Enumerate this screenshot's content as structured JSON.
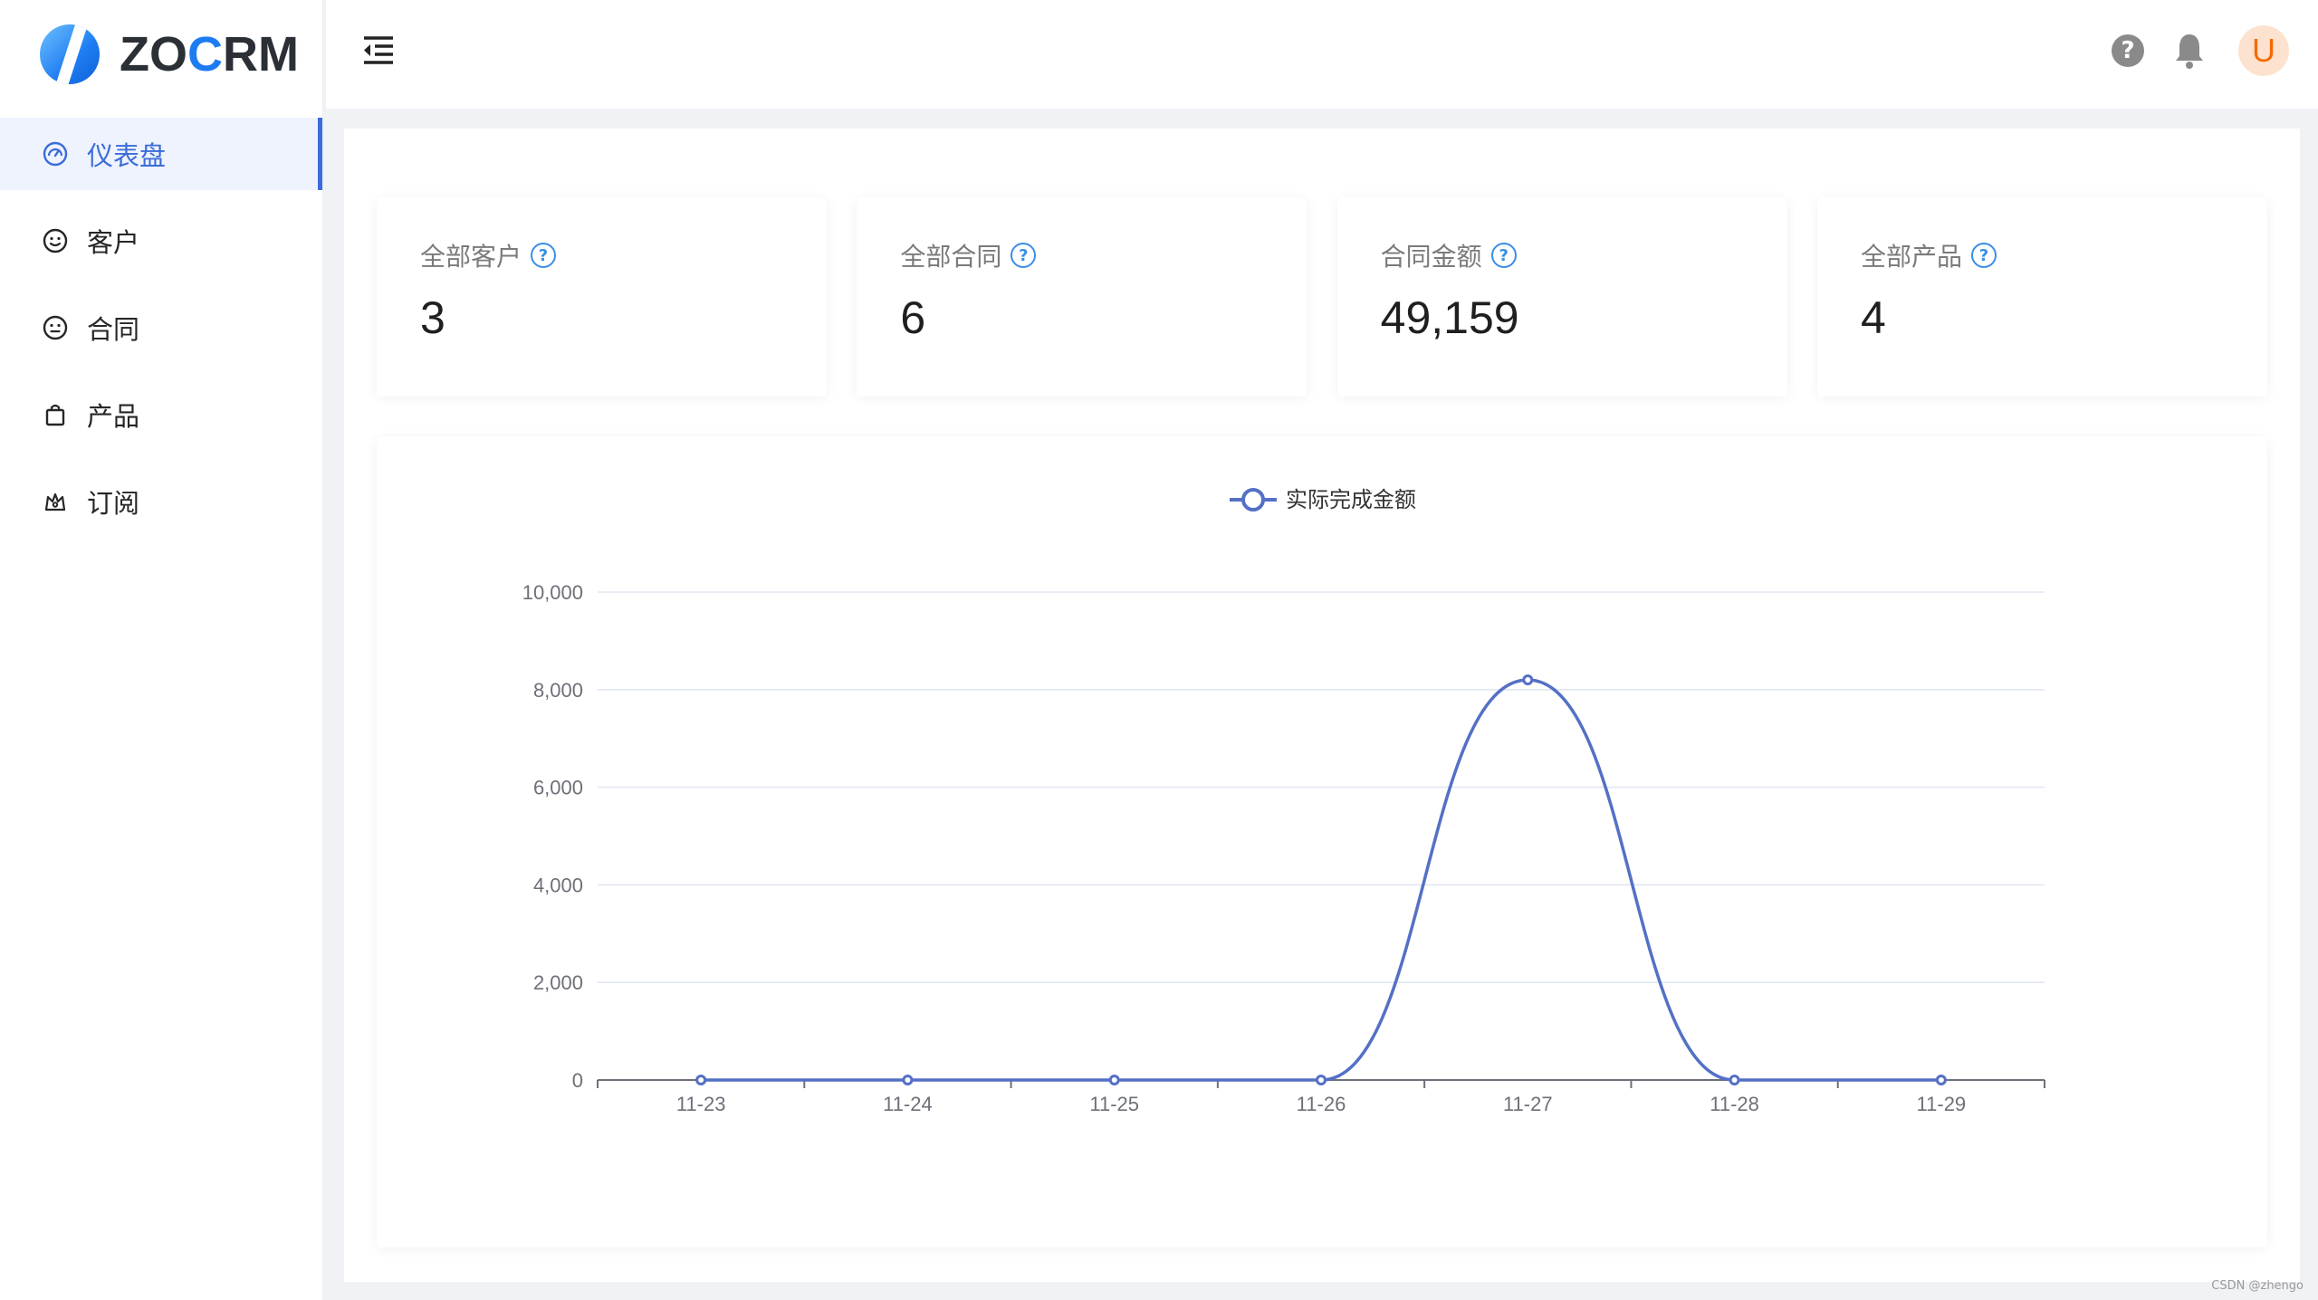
{
  "app": {
    "logo_prefix": "ZO",
    "logo_accent": "C",
    "logo_suffix": "RM"
  },
  "sidebar": {
    "items": [
      {
        "label": "仪表盘",
        "icon": "dashboard-icon",
        "active": true
      },
      {
        "label": "客户",
        "icon": "smile-icon",
        "active": false
      },
      {
        "label": "合同",
        "icon": "meh-icon",
        "active": false
      },
      {
        "label": "产品",
        "icon": "shopping-bag-icon",
        "active": false
      },
      {
        "label": "订阅",
        "icon": "crown-icon",
        "active": false
      }
    ]
  },
  "header": {
    "avatar_letter": "U",
    "help_glyph": "?"
  },
  "stats": [
    {
      "label": "全部客户",
      "value": "3"
    },
    {
      "label": "全部合同",
      "value": "6"
    },
    {
      "label": "合同金额",
      "value": "49,159"
    },
    {
      "label": "全部产品",
      "value": "4"
    }
  ],
  "chart_data": {
    "type": "line",
    "smooth": true,
    "categories": [
      "11-23",
      "11-24",
      "11-25",
      "11-26",
      "11-27",
      "11-28",
      "11-29"
    ],
    "series": [
      {
        "name": "实际完成金额",
        "values": [
          0,
          0,
          0,
          0,
          8200,
          0,
          0
        ],
        "color": "#5470c6"
      }
    ],
    "ylim": [
      0,
      10000
    ],
    "yticks": [
      "0",
      "2,000",
      "4,000",
      "6,000",
      "8,000",
      "10,000"
    ],
    "grid": true,
    "legend": "top-center"
  },
  "watermark": "CSDN @zhengo",
  "colors": {
    "accent": "#3b6cd9",
    "series": "#5470c6",
    "grid": "#e0e6f1",
    "axis": "#6e7079"
  }
}
